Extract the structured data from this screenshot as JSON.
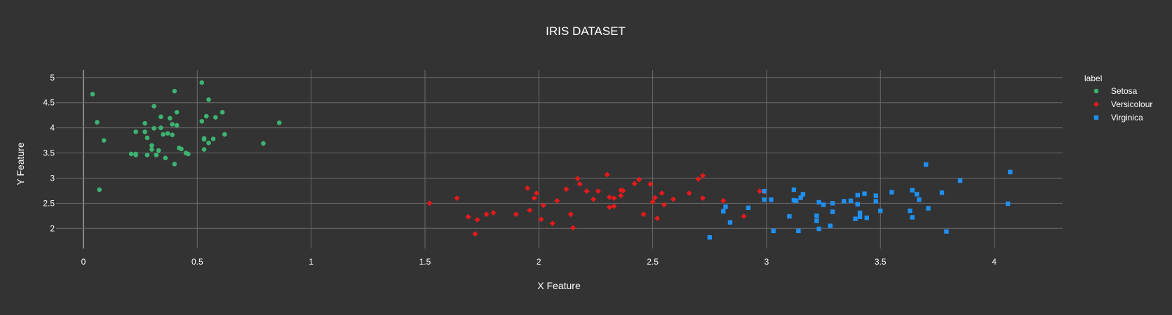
{
  "chart_data": {
    "type": "scatter",
    "title": "IRIS DATASET",
    "xlabel": "X Feature",
    "ylabel": "Y Feature",
    "xlim": [
      -0.12,
      4.3
    ],
    "ylim": [
      1.6,
      5.15
    ],
    "x_ticks": [
      0,
      0.5,
      1,
      1.5,
      2,
      2.5,
      3,
      3.5,
      4
    ],
    "y_ticks": [
      2,
      2.5,
      3,
      3.5,
      4,
      4.5,
      5
    ],
    "grid": true,
    "legend": {
      "title": "label",
      "placement": "right"
    },
    "series": [
      {
        "name": "Setosa",
        "color": "#3cb371",
        "marker": "circle",
        "points": [
          [
            0.04,
            4.67
          ],
          [
            0.06,
            4.11
          ],
          [
            0.07,
            2.77
          ],
          [
            0.09,
            3.75
          ],
          [
            0.21,
            3.48
          ],
          [
            0.23,
            3.46
          ],
          [
            0.23,
            3.48
          ],
          [
            0.23,
            3.92
          ],
          [
            0.27,
            4.09
          ],
          [
            0.27,
            3.92
          ],
          [
            0.28,
            3.8
          ],
          [
            0.28,
            3.46
          ],
          [
            0.3,
            3.57
          ],
          [
            0.3,
            3.65
          ],
          [
            0.31,
            3.99
          ],
          [
            0.31,
            4.43
          ],
          [
            0.32,
            3.46
          ],
          [
            0.33,
            3.55
          ],
          [
            0.34,
            4.22
          ],
          [
            0.34,
            4.0
          ],
          [
            0.35,
            3.87
          ],
          [
            0.36,
            3.4
          ],
          [
            0.37,
            3.89
          ],
          [
            0.38,
            4.19
          ],
          [
            0.39,
            3.86
          ],
          [
            0.39,
            4.07
          ],
          [
            0.4,
            3.28
          ],
          [
            0.4,
            4.73
          ],
          [
            0.41,
            4.05
          ],
          [
            0.41,
            4.31
          ],
          [
            0.42,
            3.6
          ],
          [
            0.43,
            3.58
          ],
          [
            0.45,
            3.5
          ],
          [
            0.46,
            3.48
          ],
          [
            0.52,
            4.13
          ],
          [
            0.52,
            4.9
          ],
          [
            0.53,
            3.79
          ],
          [
            0.53,
            3.77
          ],
          [
            0.53,
            3.57
          ],
          [
            0.54,
            4.23
          ],
          [
            0.55,
            3.7
          ],
          [
            0.55,
            4.56
          ],
          [
            0.57,
            3.78
          ],
          [
            0.58,
            4.21
          ],
          [
            0.61,
            4.31
          ],
          [
            0.62,
            3.87
          ],
          [
            0.79,
            3.69
          ],
          [
            0.86,
            4.1
          ]
        ]
      },
      {
        "name": "Versicolour",
        "color": "#e31a1c",
        "marker": "diamond",
        "points": [
          [
            1.52,
            2.5
          ],
          [
            1.64,
            2.6
          ],
          [
            1.69,
            2.23
          ],
          [
            1.72,
            1.89
          ],
          [
            1.73,
            2.17
          ],
          [
            1.77,
            2.28
          ],
          [
            1.8,
            2.31
          ],
          [
            1.9,
            2.28
          ],
          [
            1.95,
            2.8
          ],
          [
            1.96,
            2.36
          ],
          [
            1.98,
            2.6
          ],
          [
            1.99,
            2.7
          ],
          [
            2.01,
            2.18
          ],
          [
            2.02,
            2.46
          ],
          [
            2.06,
            2.1
          ],
          [
            2.08,
            2.55
          ],
          [
            2.12,
            2.78
          ],
          [
            2.14,
            2.28
          ],
          [
            2.15,
            2.01
          ],
          [
            2.17,
            2.99
          ],
          [
            2.18,
            2.88
          ],
          [
            2.21,
            2.74
          ],
          [
            2.24,
            2.58
          ],
          [
            2.26,
            2.74
          ],
          [
            2.3,
            3.07
          ],
          [
            2.31,
            2.62
          ],
          [
            2.31,
            2.42
          ],
          [
            2.33,
            2.44
          ],
          [
            2.33,
            2.6
          ],
          [
            2.36,
            2.65
          ],
          [
            2.36,
            2.76
          ],
          [
            2.37,
            2.75
          ],
          [
            2.42,
            2.89
          ],
          [
            2.44,
            2.97
          ],
          [
            2.46,
            2.28
          ],
          [
            2.49,
            2.88
          ],
          [
            2.5,
            2.53
          ],
          [
            2.51,
            2.61
          ],
          [
            2.52,
            2.2
          ],
          [
            2.54,
            2.7
          ],
          [
            2.55,
            2.47
          ],
          [
            2.59,
            2.58
          ],
          [
            2.66,
            2.7
          ],
          [
            2.7,
            2.98
          ],
          [
            2.72,
            3.05
          ],
          [
            2.72,
            2.6
          ],
          [
            2.81,
            2.55
          ],
          [
            2.9,
            2.24
          ],
          [
            2.97,
            2.74
          ],
          [
            2.99,
            2.73
          ]
        ]
      },
      {
        "name": "Virginica",
        "color": "#1f8ff0",
        "marker": "square",
        "points": [
          [
            2.75,
            1.82
          ],
          [
            2.81,
            2.34
          ],
          [
            2.82,
            2.43
          ],
          [
            2.84,
            2.12
          ],
          [
            2.92,
            2.41
          ],
          [
            2.99,
            2.74
          ],
          [
            2.99,
            2.57
          ],
          [
            3.02,
            2.57
          ],
          [
            3.03,
            1.95
          ],
          [
            3.1,
            2.24
          ],
          [
            3.12,
            2.56
          ],
          [
            3.12,
            2.77
          ],
          [
            3.13,
            2.55
          ],
          [
            3.14,
            1.95
          ],
          [
            3.15,
            2.61
          ],
          [
            3.16,
            2.68
          ],
          [
            3.22,
            2.15
          ],
          [
            3.22,
            2.25
          ],
          [
            3.23,
            1.99
          ],
          [
            3.23,
            2.52
          ],
          [
            3.25,
            2.47
          ],
          [
            3.28,
            2.05
          ],
          [
            3.29,
            2.5
          ],
          [
            3.29,
            2.33
          ],
          [
            3.34,
            2.54
          ],
          [
            3.37,
            2.55
          ],
          [
            3.39,
            2.19
          ],
          [
            3.4,
            2.66
          ],
          [
            3.4,
            2.48
          ],
          [
            3.41,
            2.23
          ],
          [
            3.41,
            2.31
          ],
          [
            3.43,
            2.69
          ],
          [
            3.44,
            2.21
          ],
          [
            3.48,
            2.54
          ],
          [
            3.48,
            2.65
          ],
          [
            3.5,
            2.35
          ],
          [
            3.55,
            2.72
          ],
          [
            3.63,
            2.35
          ],
          [
            3.64,
            2.22
          ],
          [
            3.64,
            2.76
          ],
          [
            3.66,
            2.68
          ],
          [
            3.67,
            2.57
          ],
          [
            3.7,
            3.27
          ],
          [
            3.71,
            2.4
          ],
          [
            3.77,
            2.71
          ],
          [
            3.79,
            1.94
          ],
          [
            3.85,
            2.95
          ],
          [
            4.06,
            2.49
          ],
          [
            4.07,
            3.12
          ]
        ]
      }
    ]
  }
}
